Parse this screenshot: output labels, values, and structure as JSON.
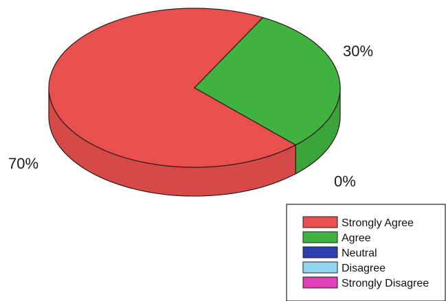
{
  "chart_data": {
    "type": "pie",
    "style": "3d",
    "title": "",
    "slices": [
      {
        "label": "Strongly Agree",
        "value": 70,
        "display": "70%",
        "color": "#e8504e"
      },
      {
        "label": "Agree",
        "value": 30,
        "display": "30%",
        "color": "#3fb23f"
      },
      {
        "label": "Neutral",
        "value": 0,
        "display": "0%",
        "color": "#2b3fb0"
      },
      {
        "label": "Disagree",
        "value": 0,
        "display": "0%",
        "color": "#8fd6ee"
      },
      {
        "label": "Strongly Disagree",
        "value": 0,
        "display": "0%",
        "color": "#e040b8"
      }
    ],
    "legend": {
      "position": "bottom-right"
    }
  }
}
